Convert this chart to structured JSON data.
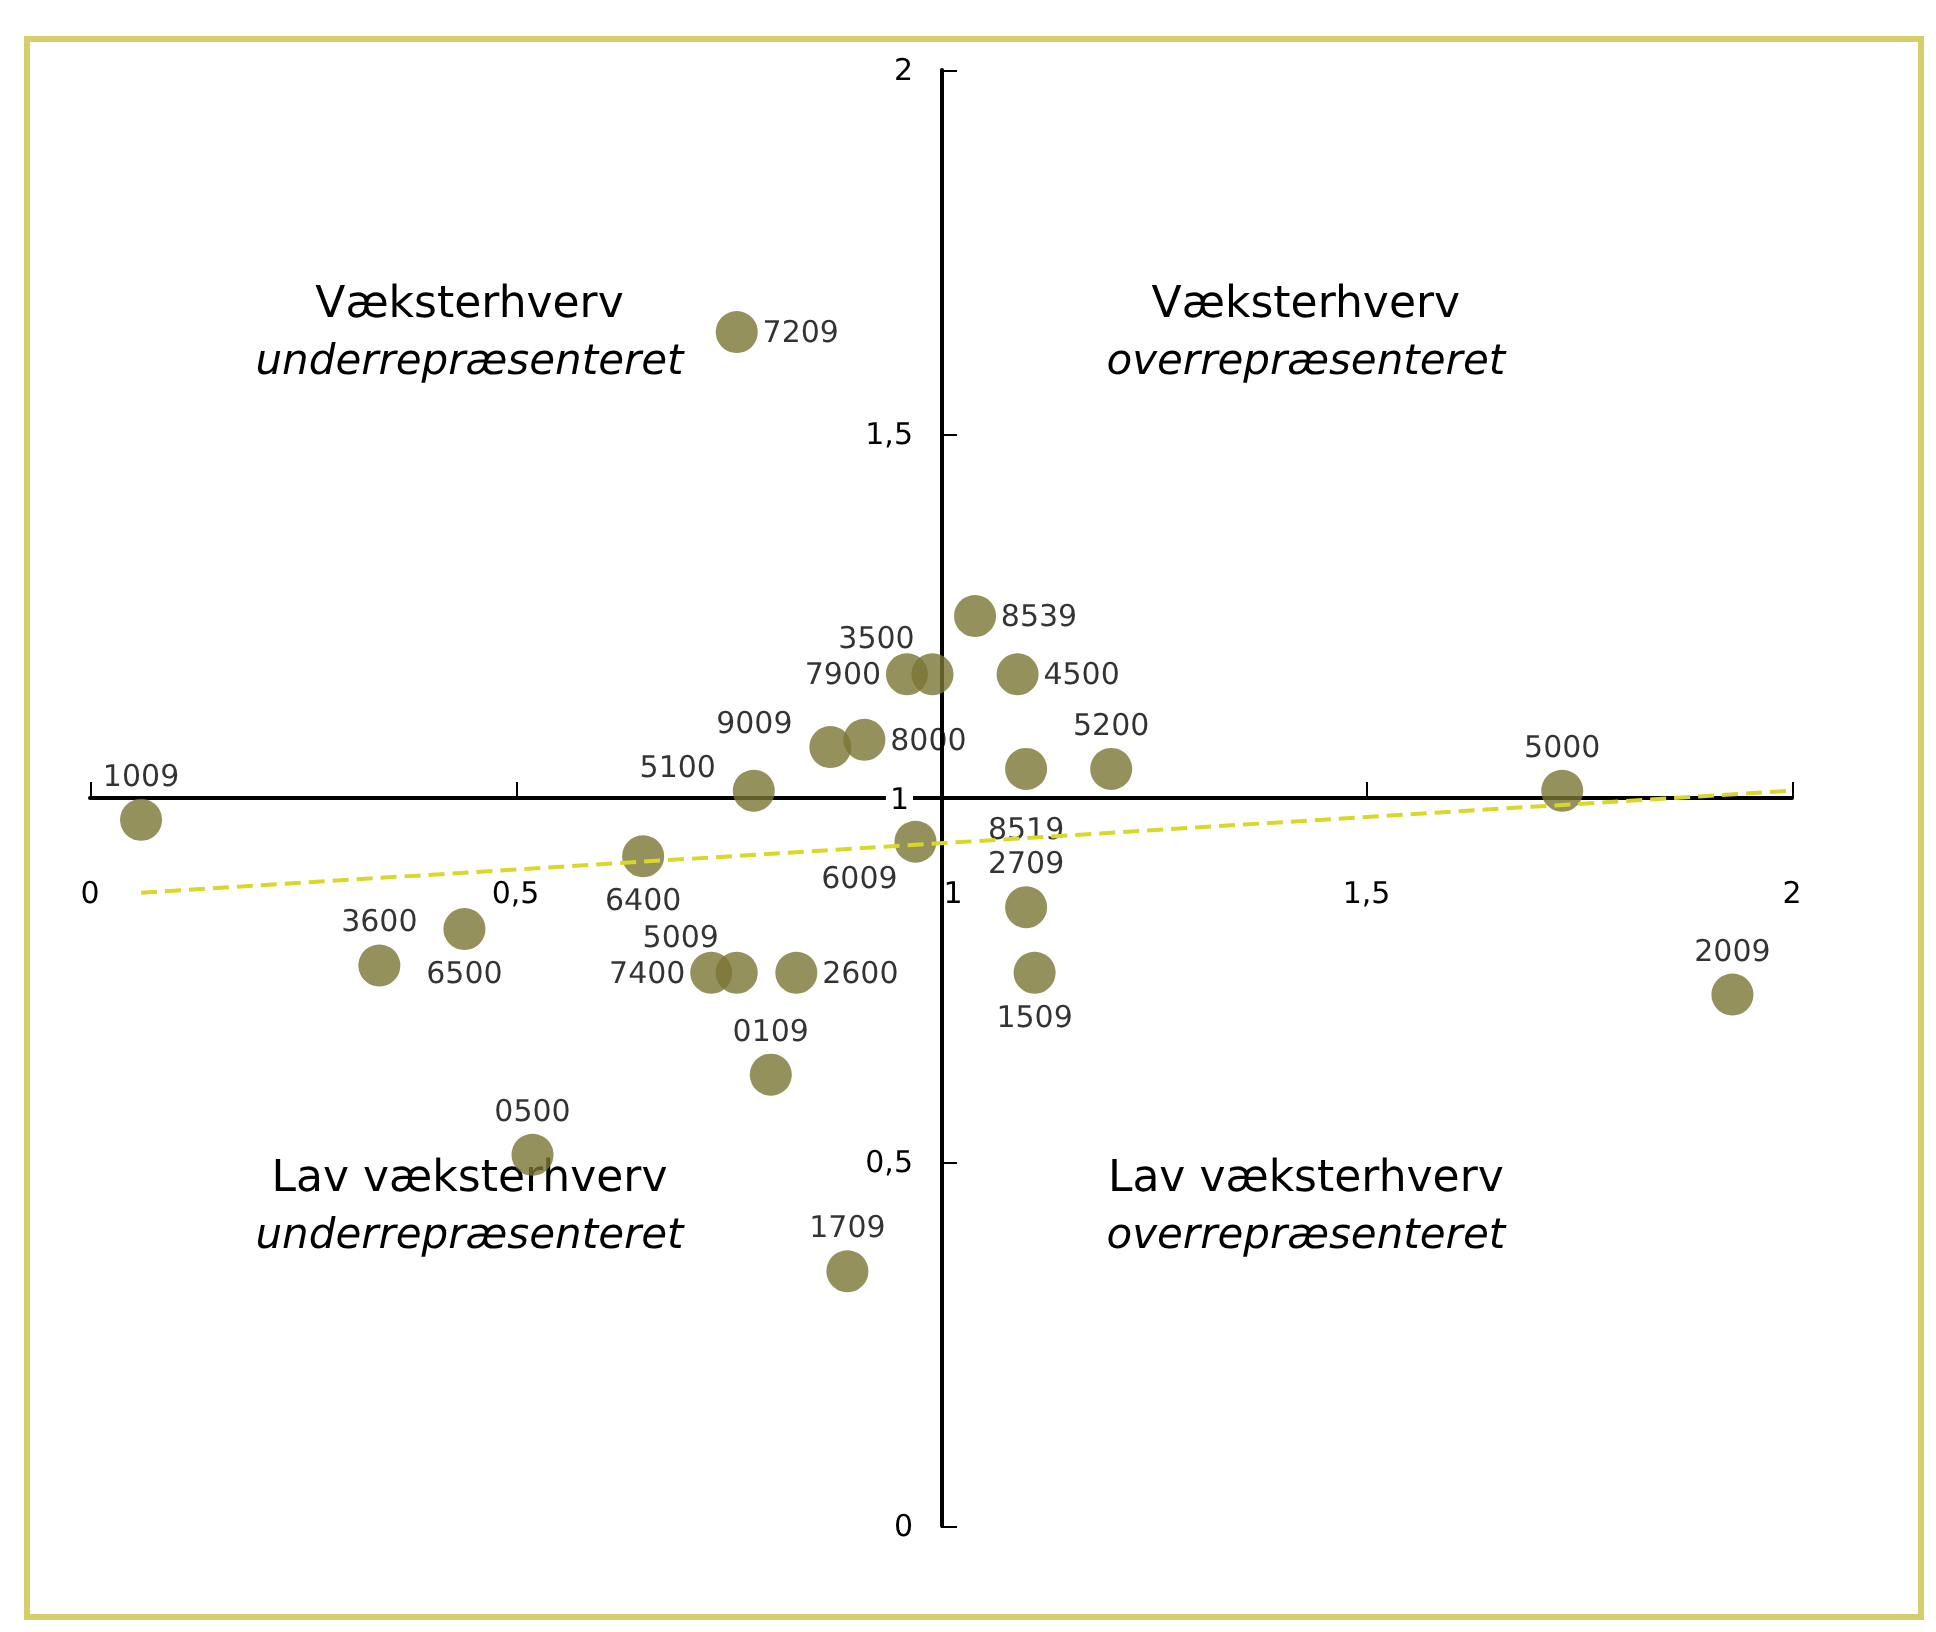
{
  "chart_data": {
    "type": "scatter",
    "xlim": [
      0,
      2
    ],
    "ylim": [
      0,
      2
    ],
    "xticks": [
      0,
      {
        "value": 0.5,
        "label": "0,5"
      },
      1,
      {
        "value": 1.5,
        "label": "1,5"
      },
      2
    ],
    "yticks": [
      0,
      {
        "value": 0.5,
        "label": "0,5"
      },
      1,
      {
        "value": 1.5,
        "label": "1,5"
      },
      2
    ],
    "grid": false,
    "legend": false,
    "marker": "circle",
    "series": [
      {
        "name": "1009",
        "color": "#7a7535",
        "x": [
          0.06
        ],
        "values": [
          0.97
        ]
      },
      {
        "name": "3600",
        "color": "#7a7535",
        "x": [
          0.34
        ],
        "values": [
          0.77
        ]
      },
      {
        "name": "6500",
        "color": "#7a7535",
        "x": [
          0.44
        ],
        "values": [
          0.82
        ]
      },
      {
        "name": "0500",
        "color": "#7a7535",
        "x": [
          0.52
        ],
        "values": [
          0.51
        ]
      },
      {
        "name": "6400",
        "color": "#7a7535",
        "x": [
          0.65
        ],
        "values": [
          0.92
        ]
      },
      {
        "name": "5100",
        "color": "#7a7535",
        "x": [
          0.78
        ],
        "values": [
          1.01
        ]
      },
      {
        "name": "7209",
        "color": "#7a7535",
        "x": [
          0.76
        ],
        "values": [
          1.64
        ]
      },
      {
        "name": "7400",
        "color": "#7a7535",
        "x": [
          0.73
        ],
        "values": [
          0.76
        ]
      },
      {
        "name": "5009",
        "color": "#7a7535",
        "x": [
          0.76
        ],
        "values": [
          0.76
        ]
      },
      {
        "name": "2600",
        "color": "#7a7535",
        "x": [
          0.83
        ],
        "values": [
          0.76
        ]
      },
      {
        "name": "0109",
        "color": "#7a7535",
        "x": [
          0.8
        ],
        "values": [
          0.62
        ]
      },
      {
        "name": "1709",
        "color": "#7a7535",
        "x": [
          0.89
        ],
        "values": [
          0.35
        ]
      },
      {
        "name": "9009",
        "color": "#7a7535",
        "x": [
          0.87
        ],
        "values": [
          1.07
        ]
      },
      {
        "name": "8000",
        "color": "#7a7535",
        "x": [
          0.91
        ],
        "values": [
          1.08
        ]
      },
      {
        "name": "7900",
        "color": "#7a7535",
        "x": [
          0.96
        ],
        "values": [
          1.17
        ]
      },
      {
        "name": "3500",
        "color": "#7a7535",
        "x": [
          0.99
        ],
        "values": [
          1.17
        ]
      },
      {
        "name": "8539",
        "color": "#7a7535",
        "x": [
          1.04
        ],
        "values": [
          1.25
        ]
      },
      {
        "name": "4500",
        "color": "#7a7535",
        "x": [
          1.09
        ],
        "values": [
          1.17
        ]
      },
      {
        "name": "6009",
        "color": "#7a7535",
        "x": [
          0.97
        ],
        "values": [
          0.94
        ]
      },
      {
        "name": "8519",
        "color": "#7a7535",
        "x": [
          1.1
        ],
        "values": [
          1.04
        ]
      },
      {
        "name": "5200",
        "color": "#7a7535",
        "x": [
          1.2
        ],
        "values": [
          1.04
        ]
      },
      {
        "name": "2709",
        "color": "#7a7535",
        "x": [
          1.1
        ],
        "values": [
          0.85
        ]
      },
      {
        "name": "1509",
        "color": "#7a7535",
        "x": [
          1.11
        ],
        "values": [
          0.76
        ]
      },
      {
        "name": "5000",
        "color": "#7a7535",
        "x": [
          1.73
        ],
        "values": [
          1.01
        ]
      },
      {
        "name": "2009",
        "color": "#7a7535",
        "x": [
          1.93
        ],
        "values": [
          0.73
        ]
      },
      {
        "type": "line",
        "color": "#d8d82a",
        "line_style": "dashed",
        "marker": "none",
        "x": [
          0.06,
          2
        ],
        "values": [
          0.87,
          1.01
        ]
      }
    ],
    "annotations": [
      "Væksterhverv\nunderrepræsenteret",
      "Væksterhverv\noverrepræsenteret",
      "Lav væksterhverv\nunderrepræsenteret",
      "Lav væksterhverv\noverrepræsenteret"
    ]
  }
}
